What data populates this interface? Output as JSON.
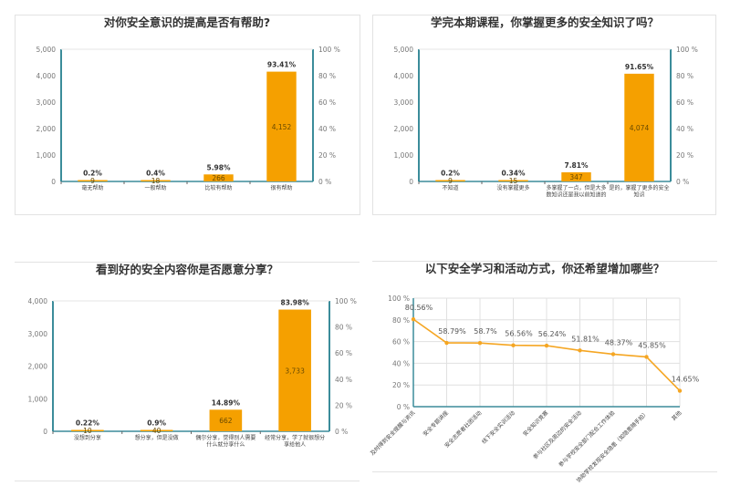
{
  "colors": {
    "bar": "#f5a000",
    "axis": "#3b8c9a",
    "line": "#f5a623",
    "grid": "#e0e0e0"
  },
  "chart_data": [
    {
      "type": "bar",
      "title": "对你安全意识的提高是否有帮助?",
      "categories": [
        "毫无帮助",
        "一般帮助",
        "比较有帮助",
        "很有帮助"
      ],
      "values": [
        9,
        18,
        266,
        4152
      ],
      "percent_labels": [
        "0.2%",
        "0.4%",
        "5.98%",
        "93.41%"
      ],
      "value_labels": [
        "9",
        "18",
        "266",
        "4,152"
      ],
      "ylim": [
        0,
        5000
      ],
      "yticks": [
        "0",
        "1,000",
        "2,000",
        "3,000",
        "4,000",
        "5,000"
      ],
      "y2ticks": [
        "0 %",
        "20 %",
        "40 %",
        "60 %",
        "80 %",
        "100 %"
      ]
    },
    {
      "type": "bar",
      "title": "学完本期课程，你掌握更多的安全知识了吗？",
      "categories": [
        "不知道",
        "没有掌握更多",
        "多掌握了一点，但是大多数知识还是我以前知道的",
        "是的，掌握了更多的安全知识"
      ],
      "values": [
        9,
        15,
        347,
        4074
      ],
      "percent_labels": [
        "0.2%",
        "0.34%",
        "7.81%",
        "91.65%"
      ],
      "value_labels": [
        "9",
        "15",
        "347",
        "4,074"
      ],
      "ylim": [
        0,
        5000
      ],
      "yticks": [
        "0",
        "1,000",
        "2,000",
        "3,000",
        "4,000",
        "5,000"
      ],
      "y2ticks": [
        "0 %",
        "20 %",
        "40 %",
        "60 %",
        "80 %",
        "100 %"
      ]
    },
    {
      "type": "bar",
      "title": "看到好的安全内容你是否愿意分享？",
      "categories": [
        "没想到分享",
        "想分享，但是没做",
        "偶尔分享，觉得别人需要什么就分享什么",
        "经常分享，学了就很想分享给他人"
      ],
      "values": [
        10,
        40,
        662,
        3733
      ],
      "percent_labels": [
        "0.22%",
        "0.9%",
        "14.89%",
        "83.98%"
      ],
      "value_labels": [
        "10",
        "40",
        "662",
        "3,733"
      ],
      "ylim": [
        0,
        4000
      ],
      "yticks": [
        "0",
        "1,000",
        "2,000",
        "3,000",
        "4,000"
      ],
      "y2ticks": [
        "0 %",
        "20 %",
        "40 %",
        "60 %",
        "80 %",
        "100 %"
      ]
    },
    {
      "type": "line",
      "title": "以下安全学习和活动方式，你还希望增加哪些？",
      "categories": [
        "及时得到安全提醒与资讯",
        "安全专题讲座",
        "安全志愿者社团活动",
        "线下安全实训活动",
        "安全知识竞赛",
        "参与社区及周边的安全活动",
        "参与学校安全部门配合工作体验",
        "协助学校发现安全隐患（如隐患随手拍）",
        "其他"
      ],
      "values": [
        80.56,
        58.79,
        58.7,
        56.56,
        56.24,
        51.81,
        48.37,
        45.85,
        14.65
      ],
      "value_labels": [
        "80.56%",
        "58.79%",
        "58.7%",
        "56.56%",
        "56.24%",
        "51.81%",
        "48.37%",
        "45.85%",
        "14.65%"
      ],
      "ylim": [
        0,
        100
      ],
      "yticks": [
        "0 %",
        "20 %",
        "40 %",
        "60 %",
        "80 %",
        "100 %"
      ],
      "grid": true
    }
  ]
}
